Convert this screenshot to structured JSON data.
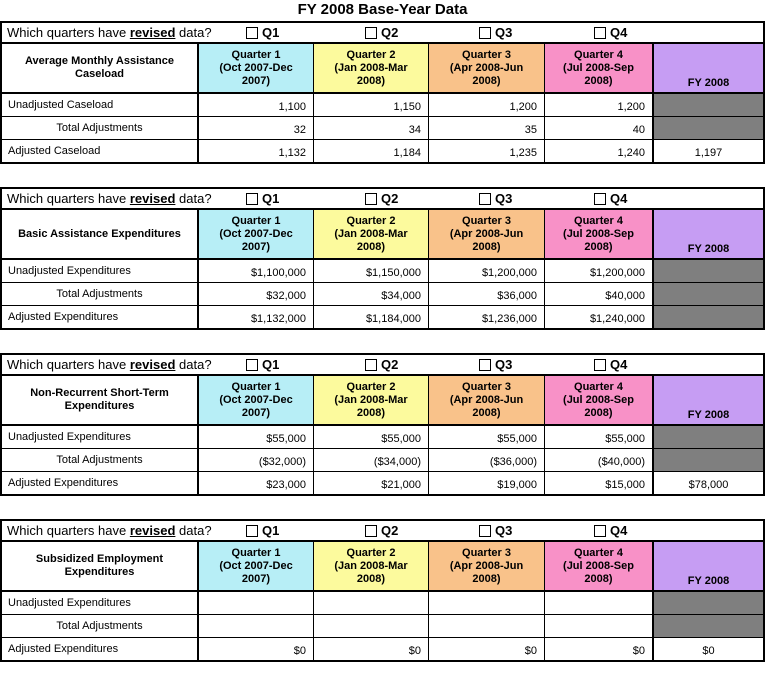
{
  "title": "FY 2008 Base-Year Data",
  "question": {
    "prefix": "Which quarters have",
    "highlight": "revised",
    "suffix": "data?"
  },
  "checkboxes": [
    {
      "label": "Q1",
      "checked": false
    },
    {
      "label": "Q2",
      "checked": false
    },
    {
      "label": "Q3",
      "checked": false
    },
    {
      "label": "Q4",
      "checked": false
    }
  ],
  "quarter_headers": [
    "Quarter 1\n(Oct 2007-Dec\n2007)",
    "Quarter 2\n(Jan 2008-Mar\n2008)",
    "Quarter 3\n(Apr 2008-Jun\n2008)",
    "Quarter 4\n(Jul 2008-Sep\n2008)"
  ],
  "fy_label": "FY 2008",
  "colors": {
    "q1": "#b7eef6",
    "q2": "#fcfa9d",
    "q3": "#f9c28a",
    "q4": "#f891c7",
    "fy": "#c69df3",
    "locked": "#7f7f7f"
  },
  "tables": [
    {
      "name": "Average Monthly Assistance Caseload",
      "rows": [
        {
          "label": "Unadjusted Caseload",
          "values": [
            "1,100",
            "1,150",
            "1,200",
            "1,200"
          ],
          "fy_value": "",
          "fy_locked": true
        },
        {
          "label": "Total Adjustments",
          "values": [
            "32",
            "34",
            "35",
            "40"
          ],
          "fy_value": "",
          "fy_locked": true
        },
        {
          "label": "Adjusted Caseload",
          "values": [
            "1,132",
            "1,184",
            "1,235",
            "1,240"
          ],
          "fy_value": "1,197",
          "fy_locked": false
        }
      ]
    },
    {
      "name": "Basic Assistance Expenditures",
      "rows": [
        {
          "label": "Unadjusted Expenditures",
          "values": [
            "$1,100,000",
            "$1,150,000",
            "$1,200,000",
            "$1,200,000"
          ],
          "fy_value": "",
          "fy_locked": true
        },
        {
          "label": "Total Adjustments",
          "values": [
            "$32,000",
            "$34,000",
            "$36,000",
            "$40,000"
          ],
          "fy_value": "",
          "fy_locked": true
        },
        {
          "label": "Adjusted Expenditures",
          "values": [
            "$1,132,000",
            "$1,184,000",
            "$1,236,000",
            "$1,240,000"
          ],
          "fy_value": "",
          "fy_locked": true
        }
      ]
    },
    {
      "name": "Non-Recurrent Short-Term Expenditures",
      "rows": [
        {
          "label": "Unadjusted Expenditures",
          "values": [
            "$55,000",
            "$55,000",
            "$55,000",
            "$55,000"
          ],
          "fy_value": "",
          "fy_locked": true
        },
        {
          "label": "Total Adjustments",
          "values": [
            "($32,000)",
            "($34,000)",
            "($36,000)",
            "($40,000)"
          ],
          "fy_value": "",
          "fy_locked": true
        },
        {
          "label": "Adjusted Expenditures",
          "values": [
            "$23,000",
            "$21,000",
            "$19,000",
            "$15,000"
          ],
          "fy_value": "$78,000",
          "fy_locked": false
        }
      ]
    },
    {
      "name": "Subsidized Employment Expenditures",
      "rows": [
        {
          "label": "Unadjusted Expenditures",
          "values": [
            "",
            "",
            "",
            ""
          ],
          "fy_value": "",
          "fy_locked": true
        },
        {
          "label": "Total Adjustments",
          "values": [
            "",
            "",
            "",
            ""
          ],
          "fy_value": "",
          "fy_locked": true
        },
        {
          "label": "Adjusted Expenditures",
          "values": [
            "$0",
            "$0",
            "$0",
            "$0"
          ],
          "fy_value": "$0",
          "fy_locked": false
        }
      ]
    }
  ]
}
